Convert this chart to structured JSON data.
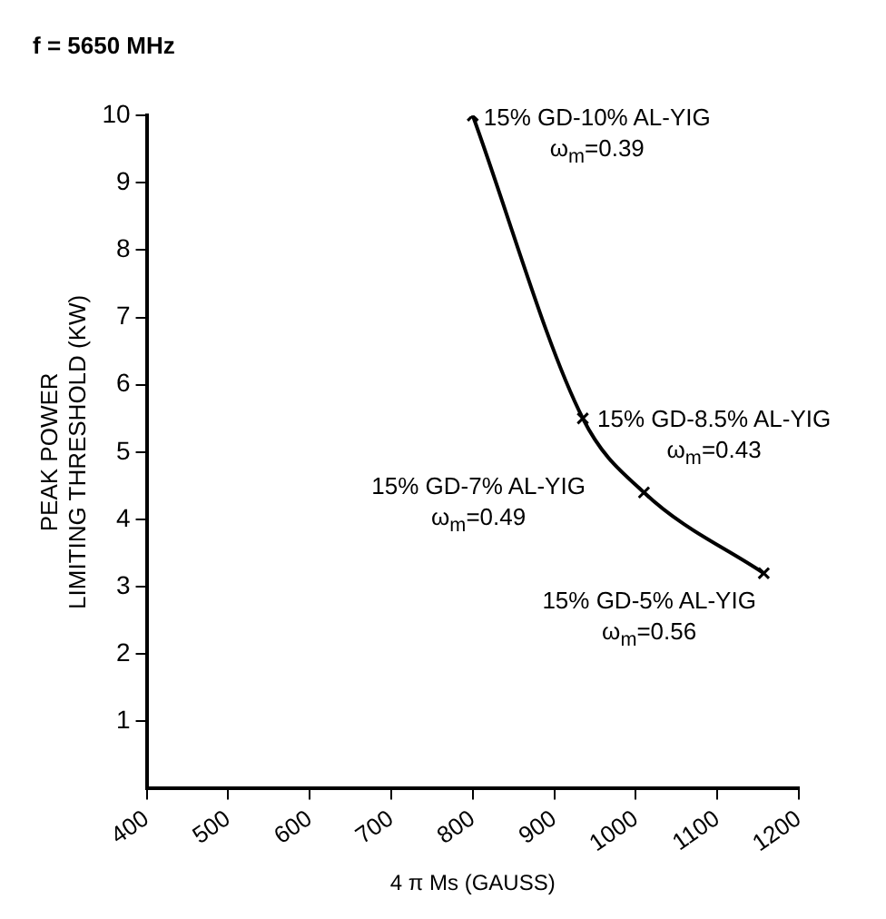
{
  "chart_data": {
    "type": "line",
    "title": "f = 5650 MHz",
    "xlabel": "4 π Ms (GAUSS)",
    "ylabel": "PEAK POWER\nLIMITING THRESHOLD (KW)",
    "series": [
      {
        "color": "#000000",
        "x": [
          800,
          935,
          1010,
          1157
        ],
        "values": [
          10,
          5.5,
          4.4,
          3.2
        ]
      }
    ],
    "xlim": [
      400,
      1200
    ],
    "xticks": [
      400,
      500,
      600,
      700,
      800,
      900,
      1000,
      1100,
      1200
    ],
    "ylim": [
      0,
      10
    ],
    "yticks": [
      1,
      2,
      3,
      4,
      5,
      6,
      7,
      8,
      9,
      10
    ],
    "grid": false,
    "legend": false,
    "marker": "cross",
    "line_style": "solid",
    "annotations": [
      {
        "text": "15% GD-10% AL-YIG\nω$_{m}$=0.39",
        "x": 800,
        "y": 10
      },
      {
        "text": "15% GD-8.5% AL-YIG\nω$_{m}$=0.43",
        "x": 935,
        "y": 5.5
      },
      {
        "text": "15% GD-7% AL-YIG\nω$_{m}$=0.49",
        "x": 1010,
        "y": 4.4
      },
      {
        "text": "15% GD-5% AL-YIG\nω$_{m}$=0.56",
        "x": 1157,
        "y": 3.2
      }
    ]
  }
}
